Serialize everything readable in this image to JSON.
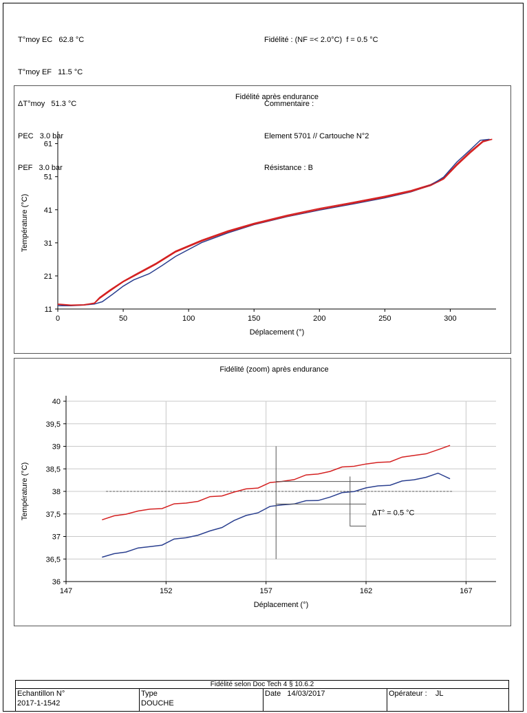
{
  "header": {
    "left": [
      "T°moy EC   62.8 °C",
      "T°moy EF   11.5 °C",
      "ΔT°moy   51.3 °C",
      "PEC   3.0 bar",
      "PEF   3.0 bar"
    ],
    "right": [
      "Fidélité : (NF =< 2.0°C)  f = 0.5 °C",
      "",
      "Commentaire :",
      "Element 5701 // Cartouche N°2",
      "Résistance : B"
    ]
  },
  "colors": {
    "red_series": "#d42020",
    "blue_series": "#2a3f8f",
    "grid": "#c8c8c8"
  },
  "chart_data": [
    {
      "type": "line",
      "title": "Fidélité après endurance",
      "xlabel": "Déplacement (°)",
      "ylabel": "Température (°C)",
      "xlim": [
        0,
        335
      ],
      "ylim": [
        11,
        63
      ],
      "xticks": [
        "0",
        "50",
        "100",
        "150",
        "200",
        "250",
        "300"
      ],
      "yticks": [
        "11",
        "21",
        "31",
        "41",
        "51",
        "61"
      ],
      "grid": false,
      "series": [
        {
          "color": "#d42020",
          "x": [
            0,
            10,
            20,
            28,
            32,
            40,
            50,
            60,
            75,
            90,
            110,
            130,
            150,
            175,
            200,
            225,
            250,
            270,
            285,
            295,
            305,
            315,
            325,
            332
          ],
          "y": [
            12.5,
            12.2,
            12.3,
            12.8,
            14.5,
            16.8,
            19.4,
            21.6,
            24.8,
            28.5,
            31.8,
            34.6,
            36.9,
            39.3,
            41.4,
            43.2,
            45.1,
            46.8,
            48.6,
            50.6,
            54.8,
            58.5,
            61.8,
            62.3
          ]
        },
        {
          "color": "#2a3f8f",
          "x": [
            0,
            10,
            20,
            28,
            34,
            42,
            50,
            58,
            70,
            80,
            90,
            110,
            130,
            150,
            175,
            200,
            225,
            250,
            270,
            285,
            295,
            305,
            315,
            323,
            330
          ],
          "y": [
            12.0,
            12.0,
            12.2,
            12.5,
            13.2,
            15.5,
            17.9,
            19.8,
            21.7,
            24.2,
            26.9,
            31.1,
            34.0,
            36.5,
            38.9,
            40.9,
            42.7,
            44.6,
            46.4,
            48.4,
            50.9,
            55.4,
            59.0,
            62.0,
            62.3
          ]
        },
        {
          "color": "#d42020",
          "x": [
            0,
            10,
            20,
            28,
            32,
            40,
            50,
            60,
            75,
            90,
            110,
            130,
            150,
            175,
            200,
            225,
            250,
            270,
            285,
            295,
            305,
            315,
            325,
            332
          ],
          "y": [
            12.4,
            12.1,
            12.2,
            12.7,
            14.2,
            16.5,
            19.2,
            21.3,
            24.5,
            28.2,
            31.5,
            34.3,
            36.6,
            39.0,
            41.1,
            42.9,
            44.8,
            46.5,
            48.3,
            50.3,
            54.4,
            58.1,
            61.5,
            62.3
          ]
        }
      ]
    },
    {
      "type": "line",
      "title": "Fidélité (zoom) après endurance",
      "xlabel": "Déplacement (°)",
      "ylabel": "Température (°C)",
      "xlim": [
        147,
        168.5
      ],
      "ylim": [
        36,
        40
      ],
      "xticks": [
        "147",
        "152",
        "157",
        "162",
        "167"
      ],
      "yticks": [
        "36",
        "36,5",
        "37",
        "37,5",
        "38",
        "38,5",
        "39",
        "39,5",
        "40"
      ],
      "grid": true,
      "reference_y": 38,
      "annotation": "ΔT° = 0.5 °C",
      "series": [
        {
          "color": "#d42020",
          "x": [
            148.8,
            149.4,
            150.0,
            150.6,
            151.2,
            151.8,
            152.4,
            153.0,
            153.6,
            154.2,
            154.8,
            155.4,
            156.0,
            156.6,
            157.2,
            157.8,
            158.4,
            159.0,
            159.6,
            160.2,
            160.8,
            161.4,
            162.0,
            162.6,
            163.2,
            163.8,
            164.4,
            165.0,
            165.6,
            166.2
          ],
          "y": [
            37.37,
            37.44,
            37.52,
            37.55,
            37.6,
            37.64,
            37.7,
            37.75,
            37.79,
            37.86,
            37.92,
            37.98,
            38.04,
            38.1,
            38.18,
            38.22,
            38.28,
            38.34,
            38.4,
            38.45,
            38.52,
            38.58,
            38.6,
            38.63,
            38.68,
            38.74,
            38.8,
            38.85,
            38.9,
            39.02
          ]
        },
        {
          "color": "#2a3f8f",
          "x": [
            148.8,
            149.4,
            150.0,
            150.6,
            151.2,
            151.8,
            152.4,
            153.0,
            153.6,
            154.2,
            154.8,
            155.4,
            156.0,
            156.6,
            157.2,
            157.8,
            158.4,
            159.0,
            159.6,
            160.2,
            160.8,
            161.4,
            162.0,
            162.6,
            163.2,
            163.8,
            164.4,
            165.0,
            165.6,
            166.2
          ],
          "y": [
            36.54,
            36.6,
            36.68,
            36.73,
            36.77,
            36.83,
            36.92,
            36.98,
            37.04,
            37.1,
            37.22,
            37.35,
            37.45,
            37.55,
            37.65,
            37.7,
            37.74,
            37.77,
            37.81,
            37.88,
            37.95,
            38.02,
            38.07,
            38.11,
            38.16,
            38.21,
            38.26,
            38.33,
            38.38,
            38.28
          ]
        }
      ]
    }
  ],
  "footer": {
    "title": "Fidélité selon Doc Tech 4 § 10.6.2",
    "echantillon_label": "Echantillon N°",
    "echantillon_value": "2017-1-1542",
    "type_label": "Type",
    "type_value": "DOUCHE",
    "date_label": "Date",
    "date_value": "14/03/2017",
    "operateur_label": "Opérateur :",
    "operateur_value": "JL"
  }
}
